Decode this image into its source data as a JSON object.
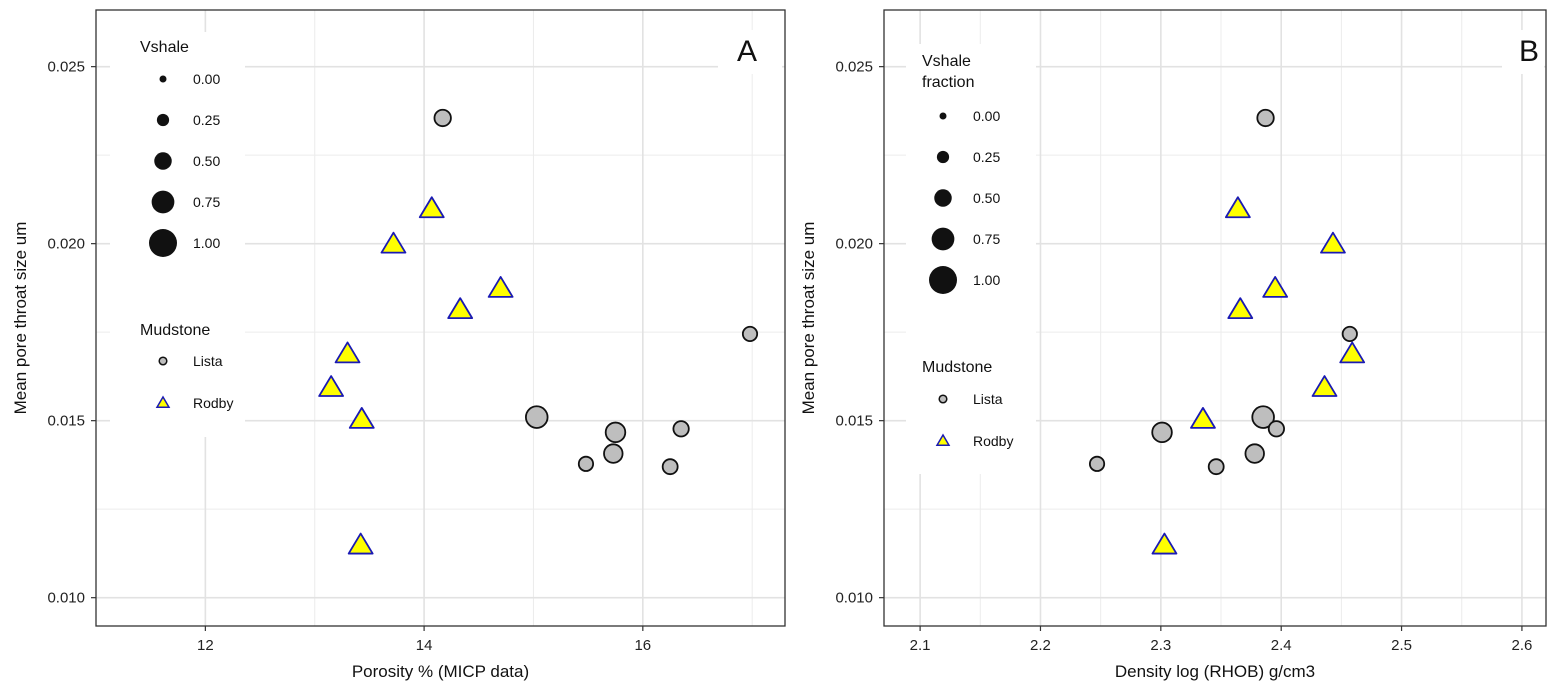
{
  "chart_data": [
    {
      "type": "scatter",
      "panel_label": "A",
      "xlabel": "Porosity % (MICP data)",
      "ylabel": "Mean pore throat size um",
      "xlim": [
        11.0,
        17.3
      ],
      "ylim": [
        0.0092,
        0.0266
      ],
      "xticks": [
        12,
        14,
        16
      ],
      "xtick_labels": [
        "12",
        "14",
        "16"
      ],
      "yticks": [
        0.01,
        0.015,
        0.02,
        0.025
      ],
      "ytick_labels": [
        "0.010",
        "0.015",
        "0.020",
        "0.025"
      ],
      "grid": true,
      "size_legend": {
        "title": "Vshale",
        "entries": [
          {
            "value": 0.0,
            "label": "0.00"
          },
          {
            "value": 0.25,
            "label": "0.25"
          },
          {
            "value": 0.5,
            "label": "0.50"
          },
          {
            "value": 0.75,
            "label": "0.75"
          },
          {
            "value": 1.0,
            "label": "1.00"
          }
        ]
      },
      "shape_legend": {
        "title": "Mudstone",
        "entries": [
          {
            "label": "Lista",
            "shape": "circle"
          },
          {
            "label": "Rodby",
            "shape": "triangle"
          }
        ]
      },
      "series": [
        {
          "name": "Lista",
          "shape": "circle",
          "fill": "#bebebe",
          "stroke": "#111111",
          "points": [
            {
              "x": 14.17,
              "y": 0.02355,
              "vshale": 0.45
            },
            {
              "x": 16.98,
              "y": 0.01745,
              "vshale": 0.35
            },
            {
              "x": 15.03,
              "y": 0.0151,
              "vshale": 0.7
            },
            {
              "x": 15.75,
              "y": 0.01467,
              "vshale": 0.6
            },
            {
              "x": 16.35,
              "y": 0.01477,
              "vshale": 0.4
            },
            {
              "x": 15.73,
              "y": 0.01407,
              "vshale": 0.55
            },
            {
              "x": 15.48,
              "y": 0.01378,
              "vshale": 0.35
            },
            {
              "x": 16.25,
              "y": 0.0137,
              "vshale": 0.38
            }
          ]
        },
        {
          "name": "Rodby",
          "shape": "triangle",
          "fill": "#ffff00",
          "stroke": "#1a1ab4",
          "points": [
            {
              "x": 14.07,
              "y": 0.021
            },
            {
              "x": 13.72,
              "y": 0.02
            },
            {
              "x": 14.7,
              "y": 0.01875
            },
            {
              "x": 14.33,
              "y": 0.01815
            },
            {
              "x": 13.3,
              "y": 0.0169
            },
            {
              "x": 13.15,
              "y": 0.01595
            },
            {
              "x": 13.43,
              "y": 0.01505
            },
            {
              "x": 13.42,
              "y": 0.0115
            }
          ]
        }
      ]
    },
    {
      "type": "scatter",
      "panel_label": "B",
      "xlabel": "Density log (RHOB) g/cm3",
      "ylabel": "Mean pore throat size um",
      "xlim": [
        2.07,
        2.62
      ],
      "ylim": [
        0.0092,
        0.0266
      ],
      "xticks": [
        2.1,
        2.2,
        2.3,
        2.4,
        2.5,
        2.6
      ],
      "xtick_labels": [
        "2.1",
        "2.2",
        "2.3",
        "2.4",
        "2.5",
        "2.6"
      ],
      "yticks": [
        0.01,
        0.015,
        0.02,
        0.025
      ],
      "ytick_labels": [
        "0.010",
        "0.015",
        "0.020",
        "0.025"
      ],
      "grid": true,
      "size_legend": {
        "title": [
          "Vshale",
          "fraction"
        ],
        "entries": [
          {
            "value": 0.0,
            "label": "0.00"
          },
          {
            "value": 0.25,
            "label": "0.25"
          },
          {
            "value": 0.5,
            "label": "0.50"
          },
          {
            "value": 0.75,
            "label": "0.75"
          },
          {
            "value": 1.0,
            "label": "1.00"
          }
        ]
      },
      "shape_legend": {
        "title": "Mudstone",
        "entries": [
          {
            "label": "Lista",
            "shape": "circle"
          },
          {
            "label": "Rodby",
            "shape": "triangle"
          }
        ]
      },
      "series": [
        {
          "name": "Lista",
          "shape": "circle",
          "fill": "#bebebe",
          "stroke": "#111111",
          "points": [
            {
              "x": 2.387,
              "y": 0.02355,
              "vshale": 0.45
            },
            {
              "x": 2.457,
              "y": 0.01745,
              "vshale": 0.35
            },
            {
              "x": 2.385,
              "y": 0.0151,
              "vshale": 0.7
            },
            {
              "x": 2.301,
              "y": 0.01467,
              "vshale": 0.6
            },
            {
              "x": 2.396,
              "y": 0.01477,
              "vshale": 0.4
            },
            {
              "x": 2.378,
              "y": 0.01407,
              "vshale": 0.55
            },
            {
              "x": 2.247,
              "y": 0.01378,
              "vshale": 0.35
            },
            {
              "x": 2.346,
              "y": 0.0137,
              "vshale": 0.38
            }
          ]
        },
        {
          "name": "Rodby",
          "shape": "triangle",
          "fill": "#ffff00",
          "stroke": "#1a1ab4",
          "points": [
            {
              "x": 2.364,
              "y": 0.021
            },
            {
              "x": 2.443,
              "y": 0.02
            },
            {
              "x": 2.395,
              "y": 0.01875
            },
            {
              "x": 2.366,
              "y": 0.01815
            },
            {
              "x": 2.459,
              "y": 0.0169
            },
            {
              "x": 2.436,
              "y": 0.01595
            },
            {
              "x": 2.335,
              "y": 0.01505
            },
            {
              "x": 2.303,
              "y": 0.0115
            }
          ]
        }
      ]
    }
  ]
}
